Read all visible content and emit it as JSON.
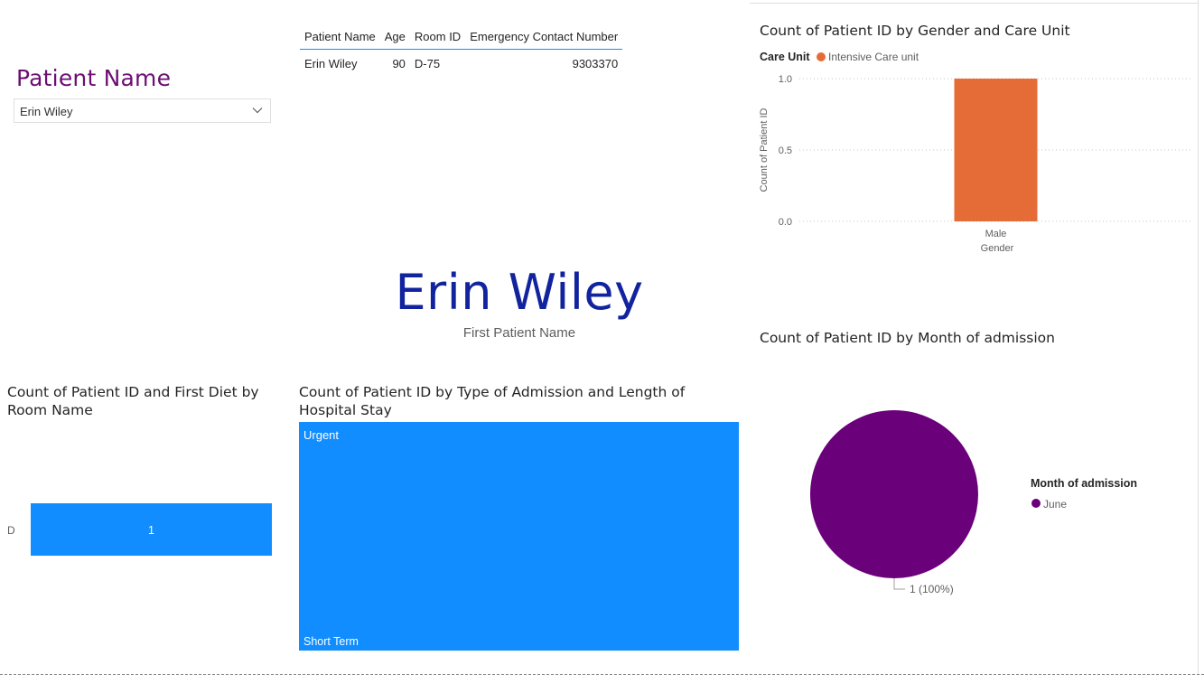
{
  "slicer": {
    "title": "Patient Name",
    "selected": "Erin Wiley"
  },
  "patient_table": {
    "columns": [
      "Patient Name",
      "Age",
      "Room ID",
      "Emergency Contact Number"
    ],
    "rows": [
      [
        "Erin Wiley",
        "90",
        "D-75",
        "9303370"
      ]
    ]
  },
  "card": {
    "value": "Erin Wiley",
    "label": "First Patient Name"
  },
  "colors": {
    "accent_blue": "#118dff",
    "orange": "#e66c37",
    "purple": "#6b007b",
    "card_blue": "#12239e",
    "slicer_purple": "#6b0f72"
  },
  "chart_data": [
    {
      "type": "bar",
      "title": "Count of Patient ID by Gender and Care Unit",
      "legend_title": "Care Unit",
      "legend_position": "top-left",
      "categories": [
        "Male"
      ],
      "series": [
        {
          "name": "Intensive Care unit",
          "values": [
            1
          ],
          "color": "#e66c37"
        }
      ],
      "xlabel": "Gender",
      "ylabel": "Count of Patient ID",
      "yticks": [
        "0.0",
        "0.5",
        "1.0"
      ],
      "ylim": [
        0,
        1
      ],
      "grid": true
    },
    {
      "type": "pie",
      "title": "Count of Patient ID by Month of admission",
      "legend_title": "Month of admission",
      "legend_position": "right",
      "slices": [
        {
          "label": "June",
          "value": 1,
          "percent": 100,
          "color": "#6b007b"
        }
      ],
      "data_labels": [
        "1 (100%)"
      ]
    },
    {
      "type": "bar",
      "orientation": "horizontal",
      "title": "Count of Patient ID and First Diet by Room Name",
      "categories": [
        "D"
      ],
      "values": [
        1
      ],
      "data_labels": [
        "1"
      ],
      "color": "#118dff"
    },
    {
      "type": "treemap",
      "title": "Count of Patient ID by Type of Admission and Length of Hospital Stay",
      "items": [
        {
          "group": "Urgent",
          "detail": "Short Term",
          "value": 1,
          "color": "#118dff"
        }
      ]
    }
  ]
}
